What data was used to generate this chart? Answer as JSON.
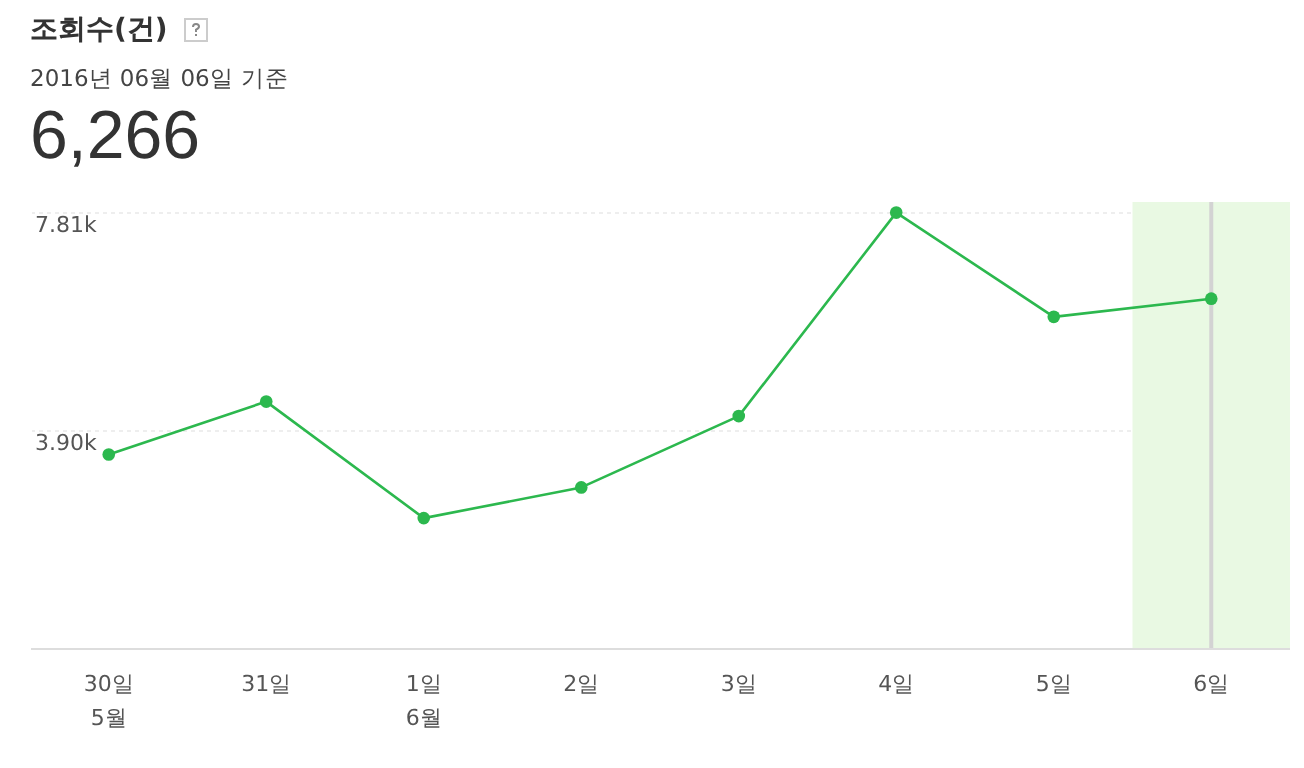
{
  "chart_data": {
    "type": "line",
    "title": "조회수(건)",
    "subtitle": "2016년 06월 06일 기준",
    "annotations": [
      "6,266"
    ],
    "categories": [
      "30일\n5월",
      "31일",
      "1일\n6월",
      "2일",
      "3일",
      "4일",
      "5일",
      "6일"
    ],
    "series": [
      {
        "color": "#2cb84e",
        "values": [
          3470,
          4420,
          2330,
          2880,
          4160,
          7810,
          5940,
          6266
        ]
      }
    ],
    "ylim": [
      0,
      8000
    ],
    "yticks": [
      {
        "value": 3900,
        "label": "3.90k"
      },
      {
        "value": 7810,
        "label": "7.81k"
      }
    ],
    "grid": "y",
    "marker": "circle",
    "line_style": "solid",
    "bands": [
      {
        "axis": "x",
        "from": "6일",
        "to": "6일",
        "color": "#e9f9e3"
      }
    ],
    "ref_lines": [
      {
        "axis": "x",
        "value": "6일",
        "color": "#d3d3d3"
      }
    ]
  }
}
